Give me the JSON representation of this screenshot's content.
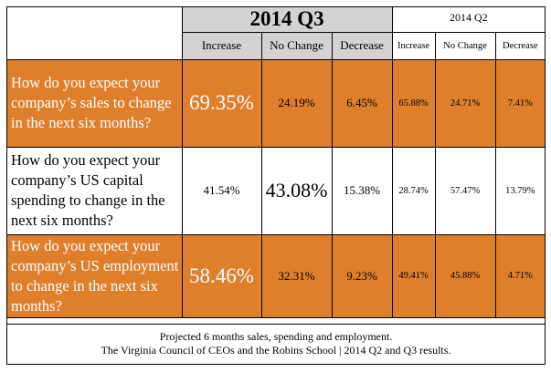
{
  "chart_data": {
    "type": "table",
    "periods": [
      {
        "label": "2014 Q3",
        "columns": [
          "Increase",
          "No Change",
          "Decrease"
        ]
      },
      {
        "label": "2014 Q2",
        "columns": [
          "Increase",
          "No Change",
          "Decrease"
        ]
      }
    ],
    "rows": [
      {
        "question": "How do you expect your company’s sales to change in the next six months?",
        "q3": [
          "69.35%",
          "24.19%",
          "6.45%"
        ],
        "q2": [
          "65.88%",
          "24.71%",
          "7.41%"
        ]
      },
      {
        "question": "How do you expect your company’s US capital spending to change in the next six months?",
        "q3": [
          "41.54%",
          "43.08%",
          "15.38%"
        ],
        "q2": [
          "28.74%",
          "57.47%",
          "13.79%"
        ]
      },
      {
        "question": "How do you expect your company’s US employment to change in the next six months?",
        "q3": [
          "58.46%",
          "32.31%",
          "9.23%"
        ],
        "q2": [
          "49.41%",
          "45.88%",
          "4.71%"
        ]
      }
    ],
    "footer": {
      "line1": "Projected 6 months sales, spending and employment.",
      "line2": "The Virginia Council of CEOs and the Robins School | 2014 Q2 and Q3 results."
    },
    "colors": {
      "highlight_row": "#e07f2b",
      "q3_header": "#d3d3d3"
    }
  }
}
